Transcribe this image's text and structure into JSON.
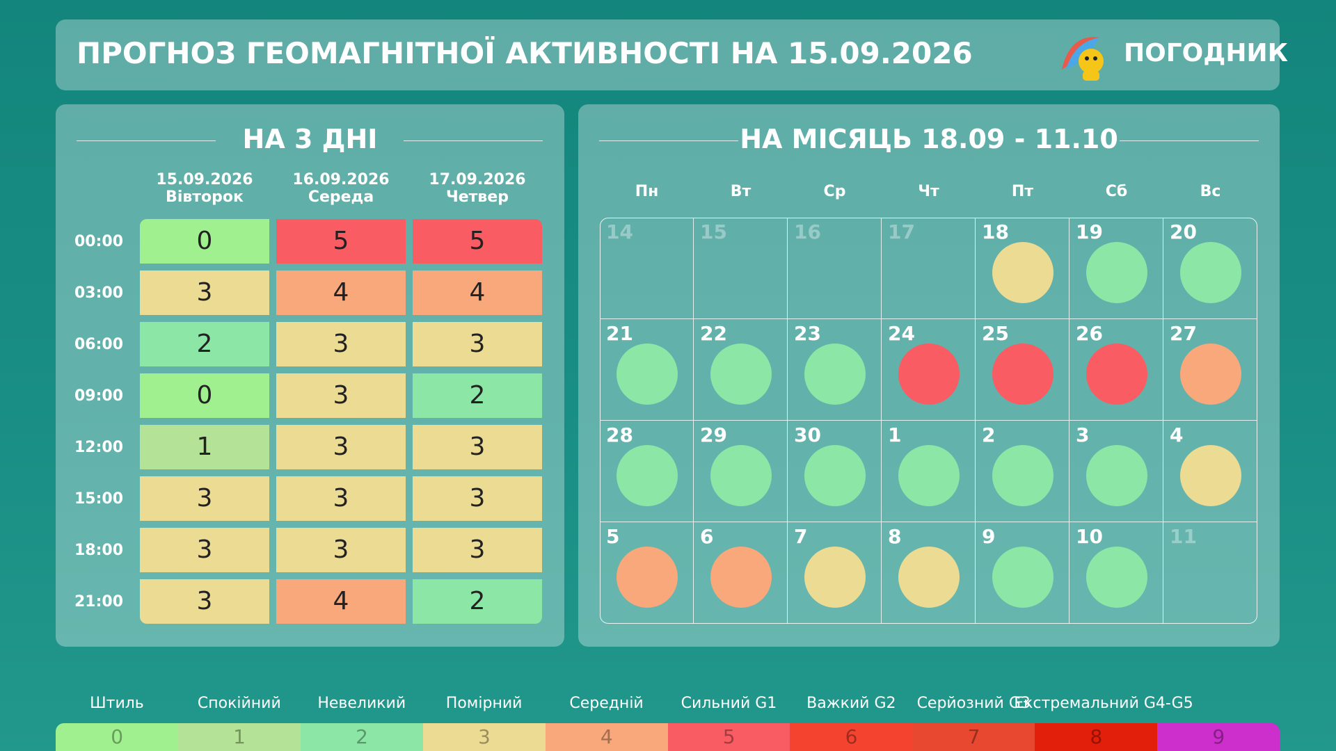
{
  "header": {
    "title": "ПРОГНОЗ ГЕОМАГНІТНОЇ АКТИВНОСТІ НА 15.09.2026",
    "brand": "ПОГОДНИК"
  },
  "three_days": {
    "title": "НА 3 ДНІ",
    "columns": [
      {
        "date": "15.09.2026",
        "weekday": "Вівторок"
      },
      {
        "date": "16.09.2026",
        "weekday": "Середа"
      },
      {
        "date": "17.09.2026",
        "weekday": "Четвер"
      }
    ],
    "rows": [
      {
        "time": "00:00",
        "values": [
          0,
          5,
          5
        ]
      },
      {
        "time": "03:00",
        "values": [
          3,
          4,
          4
        ]
      },
      {
        "time": "06:00",
        "values": [
          2,
          3,
          3
        ]
      },
      {
        "time": "09:00",
        "values": [
          0,
          3,
          2
        ]
      },
      {
        "time": "12:00",
        "values": [
          1,
          3,
          3
        ]
      },
      {
        "time": "15:00",
        "values": [
          3,
          3,
          3
        ]
      },
      {
        "time": "18:00",
        "values": [
          3,
          3,
          3
        ]
      },
      {
        "time": "21:00",
        "values": [
          3,
          4,
          2
        ]
      }
    ]
  },
  "month": {
    "title": "НА МІСЯЦЬ 18.09 - 11.10",
    "weekdays": [
      "Пн",
      "Вт",
      "Ср",
      "Чт",
      "Пт",
      "Сб",
      "Вс"
    ],
    "weeks": [
      [
        {
          "day": 14,
          "level": null
        },
        {
          "day": 15,
          "level": null
        },
        {
          "day": 16,
          "level": null
        },
        {
          "day": 17,
          "level": null
        },
        {
          "day": 18,
          "level": 3
        },
        {
          "day": 19,
          "level": 2
        },
        {
          "day": 20,
          "level": 2
        }
      ],
      [
        {
          "day": 21,
          "level": 2
        },
        {
          "day": 22,
          "level": 2
        },
        {
          "day": 23,
          "level": 2
        },
        {
          "day": 24,
          "level": 5
        },
        {
          "day": 25,
          "level": 5
        },
        {
          "day": 26,
          "level": 5
        },
        {
          "day": 27,
          "level": 4
        }
      ],
      [
        {
          "day": 28,
          "level": 2
        },
        {
          "day": 29,
          "level": 2
        },
        {
          "day": 30,
          "level": 2
        },
        {
          "day": 1,
          "level": 2
        },
        {
          "day": 2,
          "level": 2
        },
        {
          "day": 3,
          "level": 2
        },
        {
          "day": 4,
          "level": 3
        }
      ],
      [
        {
          "day": 5,
          "level": 4
        },
        {
          "day": 6,
          "level": 4
        },
        {
          "day": 7,
          "level": 3
        },
        {
          "day": 8,
          "level": 3
        },
        {
          "day": 9,
          "level": 2
        },
        {
          "day": 10,
          "level": 2
        },
        {
          "day": 11,
          "level": null
        }
      ]
    ]
  },
  "scale": {
    "levels": [
      {
        "label": "Штиль",
        "value": 0,
        "color": "#a0f08f"
      },
      {
        "label": "Спокійний",
        "value": 1,
        "color": "#b4e296"
      },
      {
        "label": "Невеликий",
        "value": 2,
        "color": "#8ce7a6"
      },
      {
        "label": "Помірний",
        "value": 3,
        "color": "#ecdb92"
      },
      {
        "label": "Середній",
        "value": 4,
        "color": "#f9a87b"
      },
      {
        "label": "Сильний G1",
        "value": 5,
        "color": "#f95d63"
      },
      {
        "label": "Важкий G2",
        "value": 6,
        "color": "#f4442f"
      },
      {
        "label": "Серйозний G3",
        "value": 7,
        "color": "#e8482f"
      },
      {
        "label": "Екстремальний G4-G5",
        "value": 8,
        "color": "#e21f0b"
      },
      {
        "label": null,
        "value": 9,
        "color": "#cc2fcc"
      }
    ]
  }
}
